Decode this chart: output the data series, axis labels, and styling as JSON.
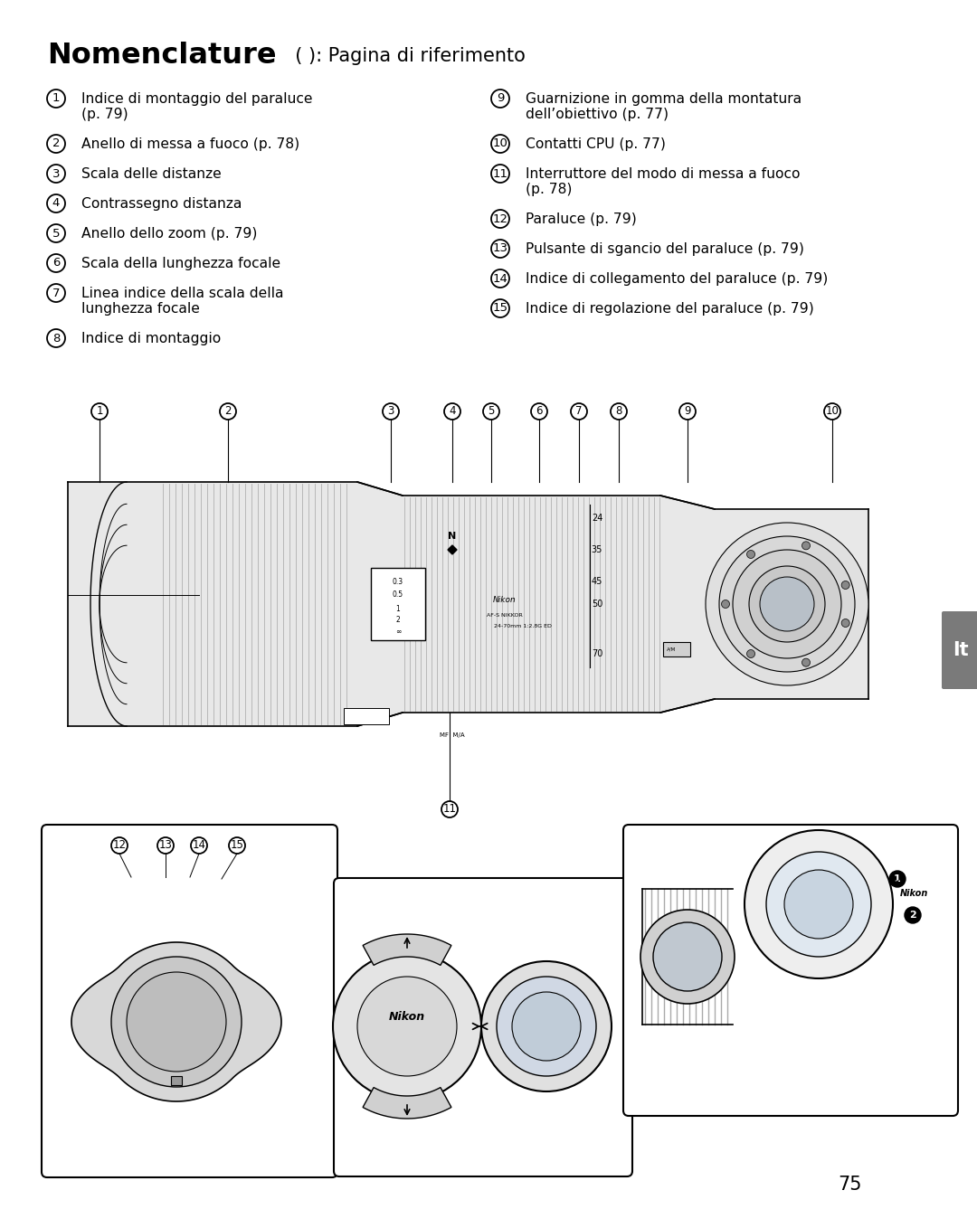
{
  "bg_color": "#ffffff",
  "title_bold": "Nomenclature",
  "title_normal": "  ( ): Pagina di riferimento",
  "left_items": [
    {
      "num": "1",
      "text": "Indice di montaggio del paraluce\n(p. 79)"
    },
    {
      "num": "2",
      "text": "Anello di messa a fuoco (p. 78)"
    },
    {
      "num": "3",
      "text": "Scala delle distanze"
    },
    {
      "num": "4",
      "text": "Contrassegno distanza"
    },
    {
      "num": "5",
      "text": "Anello dello zoom (p. 79)"
    },
    {
      "num": "6",
      "text": "Scala della lunghezza focale"
    },
    {
      "num": "7",
      "text": "Linea indice della scala della\nlunghezza focale"
    },
    {
      "num": "8",
      "text": "Indice di montaggio"
    }
  ],
  "right_items": [
    {
      "num": "9",
      "text": "Guarnizione in gomma della montatura\ndell’obiettivo (p. 77)"
    },
    {
      "num": "10",
      "text": "Contatti CPU (p. 77)"
    },
    {
      "num": "11",
      "text": "Interruttore del modo di messa a fuoco\n(p. 78)"
    },
    {
      "num": "12",
      "text": "Paraluce (p. 79)"
    },
    {
      "num": "13",
      "text": "Pulsante di sgancio del paraluce (p. 79)"
    },
    {
      "num": "14",
      "text": "Indice di collegamento del paraluce (p. 79)"
    },
    {
      "num": "15",
      "text": "Indice di regolazione del paraluce (p. 79)"
    }
  ],
  "page_number": "75",
  "tab_text": "It",
  "tab_color": "#7a7a7a"
}
